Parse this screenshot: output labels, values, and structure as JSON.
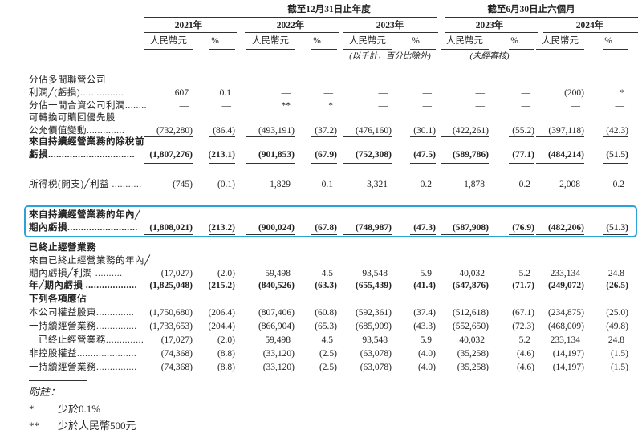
{
  "header": {
    "groups": [
      "截至12月31日止年度",
      "截至6月30日止六個月"
    ],
    "years": [
      "2021年",
      "2022年",
      "2023年",
      "2023年",
      "2024年"
    ],
    "units": [
      "人民幣元",
      "%",
      "人民幣元",
      "%",
      "人民幣元",
      "%",
      "人民幣元",
      "%",
      "人民幣元",
      "%"
    ],
    "notes": [
      "(以千計，百分比除外)",
      "(未經審核)"
    ]
  },
  "table": {
    "rows": [
      {
        "label": [
          "分佔多間聯營公司",
          "利潤╱(虧損)................"
        ],
        "cells": [
          "607",
          "0.1",
          "—",
          "—",
          "—",
          "—",
          "—",
          "—",
          "(200)",
          "*"
        ]
      },
      {
        "label": [
          "分佔一間合資公司利潤........"
        ],
        "cells": [
          "—",
          "—",
          "**",
          "*",
          "—",
          "—",
          "—",
          "—",
          "—",
          "—"
        ]
      },
      {
        "label": [
          "可轉換可贖回優先股",
          "公允價值變動.............."
        ],
        "cells": [
          "(732,280)",
          "(86.4)",
          "(493,191)",
          "(37.2)",
          "(476,160)",
          "(30.1)",
          "(422,261)",
          "(55.2)",
          "(397,118)",
          "(42.3)"
        ]
      },
      {
        "label": [
          "來自持續經營業務的除稅前",
          "虧損................................"
        ],
        "cells": [
          "(1,807,276)",
          "(213.1)",
          "(901,853)",
          "(67.9)",
          "(752,308)",
          "(47.5)",
          "(589,786)",
          "(77.1)",
          "(484,214)",
          "(51.5)"
        ]
      },
      {
        "label": [
          "所得税(開支)╱利益 ..........."
        ],
        "cells": [
          "(745)",
          "(0.1)",
          "1,829",
          "0.1",
          "3,321",
          "0.2",
          "1,878",
          "0.2",
          "2,008",
          "0.2"
        ]
      },
      {
        "label": [
          "來自持續經營業務的年內╱",
          "期內虧損.........................."
        ],
        "cells": [
          "(1,808,021)",
          "(213.2)",
          "(900,024)",
          "(67.8)",
          "(748,987)",
          "(47.3)",
          "(587,908)",
          "(76.9)",
          "(482,206)",
          "(51.3)"
        ]
      },
      {
        "label": [
          "已終止經營業務"
        ],
        "cells": []
      },
      {
        "label": [
          "來自已終止經營業務的年內╱",
          "期內虧損╱利潤 .........."
        ],
        "cells": [
          "(17,027)",
          "(2.0)",
          "59,498",
          "4.5",
          "93,548",
          "5.9",
          "40,032",
          "5.2",
          "233,134",
          "24.8"
        ]
      },
      {
        "label": [
          "年╱期內虧損 ..................."
        ],
        "cells": [
          "(1,825,048)",
          "(215.2)",
          "(840,526)",
          "(63.3)",
          "(655,439)",
          "(41.4)",
          "(547,876)",
          "(71.7)",
          "(249,072)",
          "(26.5)"
        ]
      },
      {
        "label": [
          "下列各項應佔"
        ],
        "cells": []
      },
      {
        "label": [
          "本公司權益股東.............."
        ],
        "cells": [
          "(1,750,680)",
          "(206.4)",
          "(807,406)",
          "(60.8)",
          "(592,361)",
          "(37.4)",
          "(512,618)",
          "(67.1)",
          "(234,875)",
          "(25.0)"
        ]
      },
      {
        "label": [
          "一持續經營業務..............."
        ],
        "cells": [
          "(1,733,653)",
          "(204.4)",
          "(866,904)",
          "(65.3)",
          "(685,909)",
          "(43.3)",
          "(552,650)",
          "(72.3)",
          "(468,009)",
          "(49.8)"
        ]
      },
      {
        "label": [
          "一已終止經營業務.............."
        ],
        "cells": [
          "(17,027)",
          "(2.0)",
          "59,498",
          "4.5",
          "93,548",
          "5.9",
          "40,032",
          "5.2",
          "233,134",
          "24.8"
        ]
      },
      {
        "label": [
          "非控股權益......................"
        ],
        "cells": [
          "(74,368)",
          "(8.8)",
          "(33,120)",
          "(2.5)",
          "(63,078)",
          "(4.0)",
          "(35,258)",
          "(4.6)",
          "(14,197)",
          "(1.5)"
        ]
      },
      {
        "label": [
          "一持續經營業務..............."
        ],
        "cells": [
          "(74,368)",
          "(8.8)",
          "(33,120)",
          "(2.5)",
          "(63,078)",
          "(4.0)",
          "(35,258)",
          "(4.6)",
          "(14,197)",
          "(1.5)"
        ]
      }
    ]
  },
  "footnotes": {
    "title": "附註：",
    "items": [
      [
        "*",
        "少於0.1%"
      ],
      [
        "**",
        "少於人民幣500元"
      ]
    ]
  }
}
